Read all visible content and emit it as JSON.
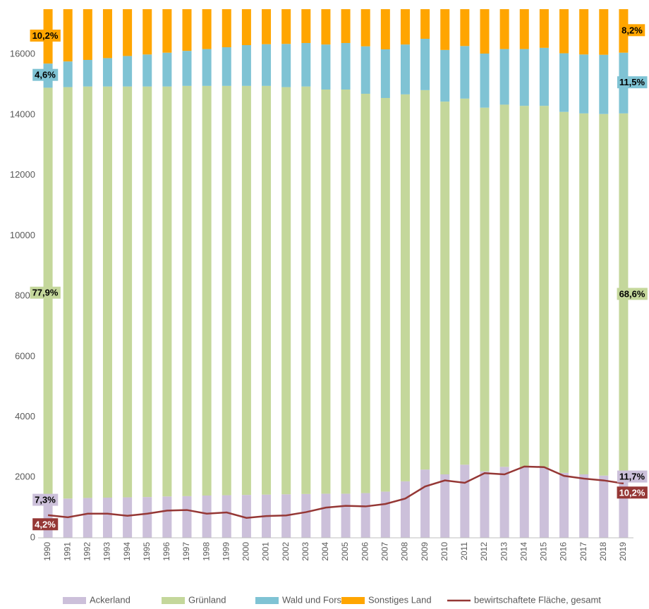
{
  "chart_data": {
    "type": "bar",
    "stacked": true,
    "categories": [
      "1990",
      "1991",
      "1992",
      "1993",
      "1994",
      "1995",
      "1996",
      "1997",
      "1998",
      "1999",
      "2000",
      "2001",
      "2002",
      "2003",
      "2004",
      "2005",
      "2006",
      "2007",
      "2008",
      "2009",
      "2010",
      "2011",
      "2012",
      "2013",
      "2014",
      "2015",
      "2016",
      "2017",
      "2018",
      "2019"
    ],
    "series": [
      {
        "name": "Ackerland",
        "type": "bar",
        "color": "#ccc0da",
        "start_label": "7,3%",
        "end_label": "11,7%",
        "values": [
          1280,
          1300,
          1320,
          1330,
          1340,
          1350,
          1370,
          1380,
          1400,
          1410,
          1420,
          1430,
          1440,
          1450,
          1460,
          1460,
          1480,
          1530,
          1870,
          2260,
          2100,
          2420,
          2200,
          2350,
          2340,
          2330,
          2150,
          2100,
          2060,
          2050
        ]
      },
      {
        "name": "Grünland",
        "type": "bar",
        "color": "#c4d79b",
        "start_label": "77,9%",
        "end_label": "68,6%",
        "values": [
          13620,
          13620,
          13620,
          13610,
          13600,
          13590,
          13570,
          13580,
          13560,
          13550,
          13540,
          13530,
          13480,
          13490,
          13380,
          13380,
          13220,
          13030,
          12810,
          12560,
          12340,
          12120,
          12040,
          11990,
          11960,
          11970,
          11950,
          11950,
          11970,
          12000
        ]
      },
      {
        "name": "Wald und Forst",
        "type": "bar",
        "color": "#7fc3d4",
        "start_label": "4,6%",
        "end_label": "11,5%",
        "values": [
          800,
          850,
          880,
          940,
          1010,
          1060,
          1120,
          1160,
          1220,
          1280,
          1350,
          1380,
          1430,
          1440,
          1490,
          1540,
          1570,
          1610,
          1650,
          1700,
          1710,
          1740,
          1790,
          1840,
          1880,
          1920,
          1940,
          1950,
          1960,
          2010
        ]
      },
      {
        "name": "Sonstiges Land",
        "type": "bar",
        "color": "#ffa500",
        "start_label": "10,2%",
        "end_label": "8,2%",
        "values": [
          1800,
          1730,
          1680,
          1620,
          1550,
          1500,
          1440,
          1380,
          1320,
          1260,
          1190,
          1160,
          1150,
          1120,
          1170,
          1120,
          1230,
          1330,
          1170,
          980,
          1350,
          1220,
          1470,
          1320,
          1320,
          1280,
          1460,
          1500,
          1510,
          1440
        ]
      },
      {
        "name": "bewirtschaftete Fläche, gesamt",
        "type": "line",
        "color": "#953735",
        "start_label": "4,2%",
        "end_label": "10,2%",
        "values": [
          750,
          680,
          800,
          800,
          730,
          800,
          900,
          920,
          800,
          840,
          660,
          720,
          740,
          850,
          1000,
          1060,
          1040,
          1120,
          1300,
          1700,
          1900,
          1820,
          2140,
          2100,
          2360,
          2340,
          2050,
          1960,
          1900,
          1800
        ]
      }
    ],
    "ylim": [
      0,
      17500
    ],
    "yticks": [
      0,
      2000,
      4000,
      6000,
      8000,
      10000,
      12000,
      14000,
      16000
    ],
    "grid": false
  }
}
